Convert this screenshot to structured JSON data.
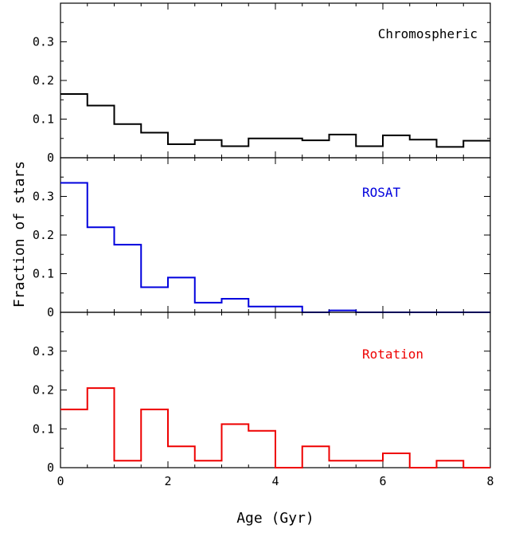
{
  "chart_data": {
    "type": "line",
    "step": true,
    "xlabel": "Age (Gyr)",
    "ylabel": "Fraction of stars",
    "xlim": [
      0,
      8
    ],
    "ylim": [
      0,
      0.4
    ],
    "x_ticks": [
      "0",
      "2",
      "4",
      "6",
      "8"
    ],
    "y_ticks": [
      "0",
      "0.1",
      "0.2",
      "0.3"
    ],
    "bin_edges": [
      0,
      0.5,
      1,
      1.5,
      2,
      2.5,
      3,
      3.5,
      4,
      4.5,
      5,
      5.5,
      6,
      6.5,
      7,
      7.5,
      8
    ],
    "panels": [
      {
        "label": "Chromospheric",
        "color": "#000000",
        "values": [
          0.165,
          0.135,
          0.087,
          0.065,
          0.035,
          0.046,
          0.03,
          0.05,
          0.05,
          0.045,
          0.06,
          0.03,
          0.058,
          0.047,
          0.028,
          0.044
        ]
      },
      {
        "label": "ROSAT",
        "color": "#0000dd",
        "values": [
          0.335,
          0.22,
          0.175,
          0.065,
          0.09,
          0.025,
          0.035,
          0.015,
          0.015,
          0.0,
          0.005,
          0.0,
          0.0,
          0.0,
          0.0,
          0.0
        ]
      },
      {
        "label": "Rotation",
        "color": "#ee0000",
        "values": [
          0.15,
          0.205,
          0.018,
          0.15,
          0.055,
          0.018,
          0.112,
          0.095,
          0.0,
          0.055,
          0.018,
          0.018,
          0.037,
          0.0,
          0.018,
          0.0
        ]
      }
    ]
  }
}
